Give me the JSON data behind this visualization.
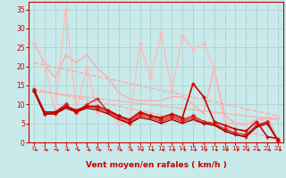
{
  "xlabel": "Vent moyen/en rafales ( km/h )",
  "xlim": [
    -0.5,
    23.5
  ],
  "ylim": [
    0,
    37
  ],
  "yticks": [
    0,
    5,
    10,
    15,
    20,
    25,
    30,
    35
  ],
  "xticks": [
    0,
    1,
    2,
    3,
    4,
    5,
    6,
    7,
    8,
    9,
    10,
    11,
    12,
    13,
    14,
    15,
    16,
    17,
    18,
    19,
    20,
    21,
    22,
    23
  ],
  "bg_color": "#c8eaea",
  "grid_color": "#b0d0d0",
  "lines": [
    {
      "x": [
        0,
        1,
        2,
        3,
        4,
        5,
        6,
        7,
        8,
        9,
        10,
        11,
        12,
        13,
        14,
        15,
        16,
        17,
        18,
        19,
        20,
        21,
        22,
        23
      ],
      "y": [
        26.5,
        20.5,
        17,
        23,
        21,
        23,
        19.5,
        17,
        13,
        11.5,
        11,
        11,
        11,
        12,
        12,
        10,
        7.5,
        19.5,
        7,
        5,
        4.5,
        6,
        6.5,
        1
      ],
      "color": "#ffaaaa",
      "lw": 1.0,
      "marker": null,
      "ms": 0
    },
    {
      "x": [
        0,
        1,
        2,
        3,
        4,
        5,
        6,
        7,
        8,
        9,
        10,
        11,
        12,
        13,
        14,
        15,
        16,
        17,
        18,
        19,
        20,
        21,
        22,
        23
      ],
      "y": [
        26,
        21,
        8,
        35,
        8.5,
        20,
        8,
        8,
        5,
        5,
        26,
        17,
        28.5,
        13.5,
        28,
        24.5,
        26,
        19.5,
        5,
        5,
        5,
        5,
        6.5,
        6.5
      ],
      "color": "#ffbbbb",
      "lw": 1.0,
      "marker": "D",
      "ms": 2
    },
    {
      "x": [
        0,
        23
      ],
      "y": [
        21,
        7
      ],
      "color": "#ffaaaa",
      "lw": 1.0,
      "marker": null,
      "ms": 0,
      "ls": "--"
    },
    {
      "x": [
        0,
        23
      ],
      "y": [
        14,
        1
      ],
      "color": "#ffaaaa",
      "lw": 1.0,
      "marker": null,
      "ms": 0,
      "ls": "--"
    },
    {
      "x": [
        0,
        23
      ],
      "y": [
        13.5,
        6
      ],
      "color": "#ffaaaa",
      "lw": 0.8,
      "marker": null,
      "ms": 0,
      "ls": "-"
    },
    {
      "x": [
        0,
        1,
        2,
        3,
        4,
        5,
        6,
        7,
        8,
        9,
        10,
        11,
        12,
        13,
        14,
        15,
        16,
        17,
        18,
        19,
        20,
        21,
        22,
        23
      ],
      "y": [
        13.5,
        7.5,
        7.5,
        9.5,
        8,
        10,
        11.5,
        8,
        6.5,
        5,
        7,
        6.5,
        5.5,
        6.5,
        5.5,
        6.5,
        5,
        5,
        3,
        2,
        1.5,
        4.5,
        5,
        0.5
      ],
      "color": "#dd2222",
      "lw": 1.0,
      "marker": "+",
      "ms": 3
    },
    {
      "x": [
        0,
        1,
        2,
        3,
        4,
        5,
        6,
        7,
        8,
        9,
        10,
        11,
        12,
        13,
        14,
        15,
        16,
        17,
        18,
        19,
        20,
        21,
        22,
        23
      ],
      "y": [
        13.5,
        7.5,
        8,
        10,
        8,
        9.5,
        9,
        8,
        7,
        5.5,
        7.5,
        7,
        6,
        7,
        6,
        7,
        5.5,
        5,
        3.5,
        2.5,
        2,
        4.5,
        5.5,
        0.5
      ],
      "color": "#dd2222",
      "lw": 1.0,
      "marker": "D",
      "ms": 2
    },
    {
      "x": [
        0,
        1,
        2,
        3,
        4,
        5,
        6,
        7,
        8,
        9,
        10,
        11,
        12,
        13,
        14,
        15,
        16,
        17,
        18,
        19,
        20,
        21,
        22,
        23
      ],
      "y": [
        13.5,
        7.5,
        7.5,
        9,
        8,
        9,
        8.5,
        7.5,
        6,
        5,
        6.5,
        6,
        5,
        6,
        5,
        6,
        5,
        4.5,
        3,
        2,
        1.5,
        4,
        5,
        0.5
      ],
      "color": "#990000",
      "lw": 1.0,
      "marker": null,
      "ms": 0
    },
    {
      "x": [
        0,
        1,
        2,
        3,
        4,
        5,
        6,
        7,
        8,
        9,
        10,
        11,
        12,
        13,
        14,
        15,
        16,
        17,
        18,
        19,
        20,
        21,
        22,
        23
      ],
      "y": [
        14,
        8,
        8,
        9.5,
        8.5,
        9.5,
        9.5,
        8.5,
        7,
        6,
        8,
        7,
        6.5,
        7.5,
        6.5,
        15.5,
        12,
        5.5,
        4.5,
        3.5,
        3,
        5.5,
        1.5,
        1
      ],
      "color": "#cc0000",
      "lw": 1.2,
      "marker": "+",
      "ms": 3
    }
  ],
  "arrow_color": "#cc0000",
  "tick_color": "#cc0000",
  "axis_color": "#cc0000",
  "xlabel_color": "#cc0000",
  "xlabel_fontsize": 6.5,
  "tick_fontsize_x": 5,
  "tick_fontsize_y": 5.5
}
